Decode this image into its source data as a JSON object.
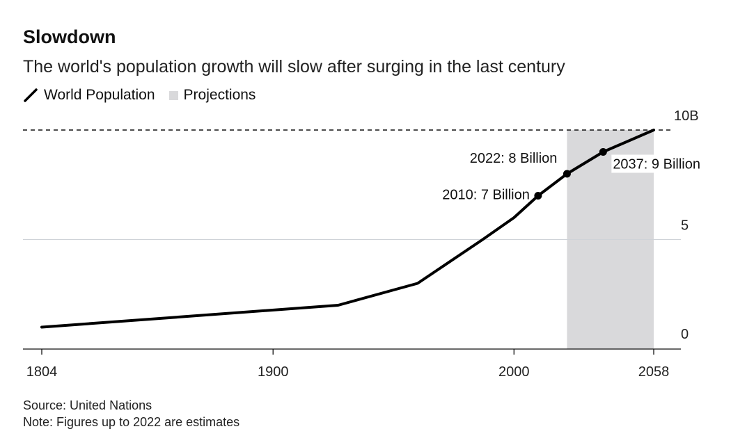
{
  "chart_data": {
    "type": "line",
    "title": "Slowdown",
    "subtitle": "The world's population growth will slow after surging in the last century",
    "legend": [
      {
        "label": "World Population",
        "kind": "line",
        "color": "#000000"
      },
      {
        "label": "Projections",
        "kind": "shade",
        "color": "#d9d9db"
      }
    ],
    "legend_placement": "top-left",
    "series": [
      {
        "name": "World Population",
        "x": [
          1804,
          1927,
          1960,
          1987,
          2000,
          2010,
          2022,
          2037,
          2058
        ],
        "y": [
          1,
          2,
          3,
          5,
          6,
          7,
          8,
          9,
          10
        ]
      }
    ],
    "projection_range": [
      2022,
      2058
    ],
    "annotations": [
      {
        "x": 2010,
        "y": 7,
        "label": "2010: 7 Billion"
      },
      {
        "x": 2022,
        "y": 8,
        "label": "2022: 8 Billion"
      },
      {
        "x": 2037,
        "y": 9,
        "label": "2037: 9 Billion"
      }
    ],
    "xlim": [
      1804,
      2058
    ],
    "ylim": [
      0,
      10
    ],
    "x_ticks": [
      1804,
      1900,
      2000,
      2058
    ],
    "x_tick_labels": [
      "1804",
      "1900",
      "2000",
      "2058"
    ],
    "y_ticks": [
      0,
      5,
      10
    ],
    "y_tick_labels": [
      "0",
      "5",
      "10B"
    ],
    "y_axis_side": "right",
    "grid": "horizontal",
    "reference_line": {
      "y": 10,
      "style": "dashed"
    }
  },
  "footer": {
    "source": "Source: United Nations",
    "note": "Note: Figures up to 2022 are estimates"
  }
}
